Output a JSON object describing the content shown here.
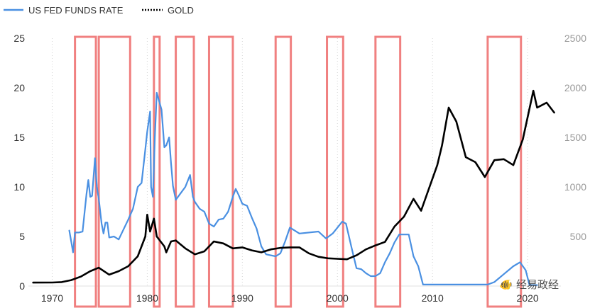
{
  "chart_data": {
    "type": "line",
    "legend": {
      "position": "top-left",
      "entries": [
        {
          "name": "US FED FUNDS RATE",
          "style": "solid",
          "color": "#4a90e2"
        },
        {
          "name": "GOLD",
          "style": "dotted",
          "color": "#000000"
        }
      ]
    },
    "x_axis": {
      "range": [
        1967.5,
        2023.5
      ],
      "ticks": [
        "1970",
        "1980",
        "1990",
        "2000",
        "2010",
        "2020"
      ]
    },
    "y_left": {
      "range": [
        0,
        25
      ],
      "ticks": [
        "0",
        "5",
        "10",
        "15",
        "20",
        "25"
      ],
      "color": "#333333"
    },
    "y_right": {
      "range": [
        0,
        2500
      ],
      "ticks": [
        "500",
        "1000",
        "1500",
        "2000",
        "2500"
      ],
      "color": "#9a9a9a"
    },
    "grid": "vertical-dotted",
    "series": [
      {
        "name": "US FED FUNDS RATE",
        "axis": "left",
        "color": "#4a90e2",
        "points": [
          [
            1971.8,
            5.6
          ],
          [
            1972.0,
            4.5
          ],
          [
            1972.2,
            3.4
          ],
          [
            1972.4,
            5.4
          ],
          [
            1972.8,
            5.4
          ],
          [
            1973.2,
            5.5
          ],
          [
            1973.5,
            8.3
          ],
          [
            1973.6,
            9.2
          ],
          [
            1973.8,
            10.7
          ],
          [
            1974.0,
            9.0
          ],
          [
            1974.2,
            9.1
          ],
          [
            1974.5,
            12.9
          ],
          [
            1974.7,
            10.0
          ],
          [
            1974.9,
            8.8
          ],
          [
            1975.2,
            6.3
          ],
          [
            1975.4,
            5.3
          ],
          [
            1975.6,
            6.4
          ],
          [
            1975.8,
            6.4
          ],
          [
            1976.0,
            4.9
          ],
          [
            1976.5,
            5.0
          ],
          [
            1977.0,
            4.7
          ],
          [
            1977.5,
            5.7
          ],
          [
            1978.0,
            6.7
          ],
          [
            1978.5,
            7.8
          ],
          [
            1979.0,
            10.0
          ],
          [
            1979.4,
            10.4
          ],
          [
            1979.8,
            13.8
          ],
          [
            1980.0,
            15.6
          ],
          [
            1980.3,
            17.6
          ],
          [
            1980.4,
            10.0
          ],
          [
            1980.6,
            9.0
          ],
          [
            1980.8,
            15.0
          ],
          [
            1981.0,
            19.5
          ],
          [
            1981.5,
            17.8
          ],
          [
            1981.8,
            14.0
          ],
          [
            1982.0,
            14.2
          ],
          [
            1982.3,
            15.0
          ],
          [
            1982.5,
            12.4
          ],
          [
            1982.7,
            10.1
          ],
          [
            1983.0,
            8.7
          ],
          [
            1984.0,
            10.0
          ],
          [
            1984.5,
            11.2
          ],
          [
            1984.8,
            9.0
          ],
          [
            1985.0,
            8.5
          ],
          [
            1985.5,
            7.8
          ],
          [
            1986.0,
            7.5
          ],
          [
            1986.5,
            6.3
          ],
          [
            1987.0,
            6.0
          ],
          [
            1987.5,
            6.7
          ],
          [
            1988.0,
            6.8
          ],
          [
            1988.5,
            7.5
          ],
          [
            1989.0,
            9.0
          ],
          [
            1989.3,
            9.8
          ],
          [
            1989.6,
            9.2
          ],
          [
            1990.0,
            8.3
          ],
          [
            1990.5,
            8.1
          ],
          [
            1991.0,
            6.9
          ],
          [
            1991.5,
            5.8
          ],
          [
            1992.0,
            4.0
          ],
          [
            1992.5,
            3.2
          ],
          [
            1993.5,
            3.0
          ],
          [
            1994.0,
            3.3
          ],
          [
            1994.5,
            4.5
          ],
          [
            1995.0,
            5.9
          ],
          [
            1995.5,
            5.6
          ],
          [
            1996.0,
            5.3
          ],
          [
            1998.0,
            5.5
          ],
          [
            1998.8,
            4.8
          ],
          [
            1999.5,
            5.3
          ],
          [
            2000.0,
            5.9
          ],
          [
            2000.5,
            6.5
          ],
          [
            2000.9,
            6.3
          ],
          [
            2001.5,
            3.8
          ],
          [
            2002.0,
            1.8
          ],
          [
            2002.5,
            1.7
          ],
          [
            2003.0,
            1.3
          ],
          [
            2003.5,
            1.0
          ],
          [
            2004.0,
            1.0
          ],
          [
            2004.5,
            1.3
          ],
          [
            2005.0,
            2.4
          ],
          [
            2005.5,
            3.3
          ],
          [
            2006.0,
            4.4
          ],
          [
            2006.5,
            5.2
          ],
          [
            2007.5,
            5.2
          ],
          [
            2008.0,
            3.0
          ],
          [
            2008.5,
            2.0
          ],
          [
            2009.0,
            0.15
          ],
          [
            2015.8,
            0.15
          ],
          [
            2016.5,
            0.4
          ],
          [
            2017.5,
            1.2
          ],
          [
            2018.5,
            2.0
          ],
          [
            2019.2,
            2.4
          ],
          [
            2019.8,
            1.6
          ],
          [
            2020.2,
            0.1
          ],
          [
            2021.0,
            0.1
          ]
        ]
      },
      {
        "name": "GOLD",
        "axis": "right",
        "color": "#000000",
        "points": [
          [
            1968.0,
            35
          ],
          [
            1970.0,
            36
          ],
          [
            1971.0,
            40
          ],
          [
            1972.0,
            60
          ],
          [
            1973.0,
            95
          ],
          [
            1974.0,
            150
          ],
          [
            1974.9,
            185
          ],
          [
            1976.0,
            115
          ],
          [
            1977.0,
            150
          ],
          [
            1978.0,
            200
          ],
          [
            1979.0,
            300
          ],
          [
            1979.8,
            500
          ],
          [
            1980.0,
            720
          ],
          [
            1980.3,
            550
          ],
          [
            1980.7,
            680
          ],
          [
            1981.0,
            500
          ],
          [
            1981.8,
            400
          ],
          [
            1982.0,
            340
          ],
          [
            1982.5,
            450
          ],
          [
            1983.0,
            460
          ],
          [
            1984.0,
            380
          ],
          [
            1985.0,
            320
          ],
          [
            1986.0,
            350
          ],
          [
            1987.0,
            450
          ],
          [
            1988.0,
            430
          ],
          [
            1989.0,
            380
          ],
          [
            1990.0,
            390
          ],
          [
            1991.0,
            360
          ],
          [
            1992.0,
            340
          ],
          [
            1993.0,
            370
          ],
          [
            1994.0,
            385
          ],
          [
            1995.0,
            390
          ],
          [
            1996.0,
            390
          ],
          [
            1997.0,
            330
          ],
          [
            1998.0,
            295
          ],
          [
            1999.0,
            280
          ],
          [
            2000.0,
            275
          ],
          [
            2001.0,
            270
          ],
          [
            2002.0,
            310
          ],
          [
            2003.0,
            370
          ],
          [
            2004.0,
            410
          ],
          [
            2005.0,
            445
          ],
          [
            2006.0,
            600
          ],
          [
            2007.0,
            700
          ],
          [
            2008.0,
            880
          ],
          [
            2008.8,
            760
          ],
          [
            2009.5,
            950
          ],
          [
            2010.5,
            1220
          ],
          [
            2011.0,
            1420
          ],
          [
            2011.7,
            1800
          ],
          [
            2012.5,
            1660
          ],
          [
            2013.5,
            1300
          ],
          [
            2014.5,
            1250
          ],
          [
            2015.5,
            1100
          ],
          [
            2016.5,
            1270
          ],
          [
            2017.5,
            1280
          ],
          [
            2018.5,
            1220
          ],
          [
            2019.5,
            1480
          ],
          [
            2020.6,
            1970
          ],
          [
            2021.0,
            1800
          ],
          [
            2022.0,
            1850
          ],
          [
            2022.8,
            1750
          ]
        ]
      }
    ],
    "highlighted_ranges": [
      [
        1972.4,
        1974.6
      ],
      [
        1974.9,
        1978.2
      ],
      [
        1980.7,
        1981.3
      ],
      [
        1983.0,
        1984.9
      ],
      [
        1986.5,
        1989.0
      ],
      [
        1993.5,
        1995.1
      ],
      [
        1998.9,
        2000.6
      ],
      [
        2004.0,
        2006.6
      ],
      [
        2015.8,
        2019.3
      ]
    ],
    "highlight_color": "#f08080",
    "watermark": {
      "symbol": "🐠",
      "text": "经易政经"
    }
  }
}
